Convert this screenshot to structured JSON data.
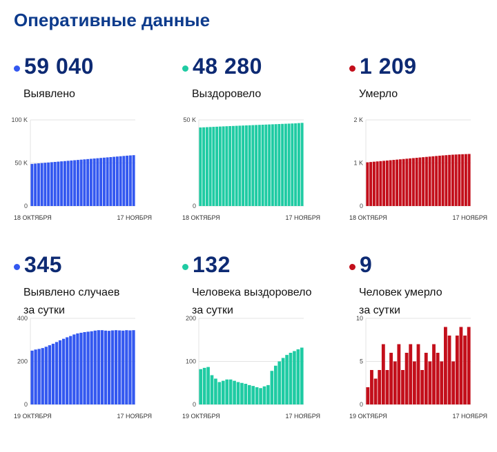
{
  "title": "Оперативные данные",
  "colors": {
    "blue": "#3358f0",
    "green": "#1fcba3",
    "red": "#c30f1b"
  },
  "panels": [
    {
      "value": "59 040",
      "label": "Выявлено",
      "color": "blue"
    },
    {
      "value": "48 280",
      "label": "Выздоровело",
      "color": "green"
    },
    {
      "value": "1 209",
      "label": "Умерло",
      "color": "red"
    },
    {
      "value": "345",
      "label": "Выявлено случаев\nза сутки",
      "color": "blue"
    },
    {
      "value": "132",
      "label": "Человека выздоровело\nза сутки",
      "color": "green"
    },
    {
      "value": "9",
      "label": "Человек умерло\nза сутки",
      "color": "red"
    }
  ],
  "chart_data": [
    {
      "type": "bar",
      "color": "blue",
      "ylim": [
        0,
        100000
      ],
      "yticks": [
        0,
        50000,
        100000
      ],
      "ytick_labels": [
        "0",
        "50 K",
        "100 K"
      ],
      "xtick_labels": [
        "18 ОКТЯБРЯ",
        "17 НОЯБРЯ"
      ],
      "values": [
        48900,
        49230,
        49560,
        49890,
        50220,
        50550,
        50880,
        51210,
        51540,
        51870,
        52200,
        52530,
        52860,
        53190,
        53520,
        53850,
        54180,
        54510,
        54840,
        55170,
        55500,
        55830,
        56160,
        56490,
        56820,
        57150,
        57480,
        57810,
        58140,
        58470,
        58780,
        59040
      ]
    },
    {
      "type": "bar",
      "color": "green",
      "ylim": [
        0,
        50000
      ],
      "yticks": [
        0,
        50000
      ],
      "ytick_labels": [
        "0",
        "50 K"
      ],
      "xtick_labels": [
        "18 ОКТЯБРЯ",
        "17 НОЯБРЯ"
      ],
      "values": [
        45600,
        45690,
        45780,
        45870,
        45960,
        46050,
        46140,
        46230,
        46320,
        46400,
        46480,
        46560,
        46640,
        46720,
        46800,
        46880,
        46960,
        47040,
        47120,
        47200,
        47280,
        47360,
        47440,
        47520,
        47600,
        47680,
        47760,
        47840,
        47920,
        48000,
        48140,
        48280
      ]
    },
    {
      "type": "bar",
      "color": "red",
      "ylim": [
        0,
        2000
      ],
      "yticks": [
        0,
        1000,
        2000
      ],
      "ytick_labels": [
        "0",
        "1 K",
        "2 K"
      ],
      "xtick_labels": [
        "18 ОКТЯБРЯ",
        "17 НОЯБРЯ"
      ],
      "values": [
        1015,
        1022,
        1029,
        1036,
        1043,
        1050,
        1057,
        1064,
        1071,
        1078,
        1085,
        1092,
        1099,
        1106,
        1113,
        1120,
        1127,
        1134,
        1141,
        1148,
        1155,
        1162,
        1169,
        1175,
        1181,
        1187,
        1192,
        1196,
        1200,
        1203,
        1206,
        1209
      ]
    },
    {
      "type": "bar",
      "color": "blue",
      "ylim": [
        0,
        400
      ],
      "yticks": [
        0,
        200,
        400
      ],
      "ytick_labels": [
        "0",
        "200",
        "400"
      ],
      "xtick_labels": [
        "19 ОКТЯБРЯ",
        "17 НОЯБРЯ"
      ],
      "values": [
        250,
        255,
        258,
        262,
        268,
        275,
        282,
        290,
        298,
        305,
        312,
        318,
        325,
        330,
        333,
        336,
        338,
        340,
        343,
        345,
        345,
        343,
        342,
        344,
        345,
        344,
        343,
        345,
        344,
        345
      ]
    },
    {
      "type": "bar",
      "color": "green",
      "ylim": [
        0,
        200
      ],
      "yticks": [
        0,
        100,
        200
      ],
      "ytick_labels": [
        "0",
        "100",
        "200"
      ],
      "xtick_labels": [
        "19 ОКТЯБРЯ",
        "17 НОЯБРЯ"
      ],
      "values": [
        82,
        85,
        87,
        68,
        60,
        52,
        55,
        58,
        58,
        55,
        52,
        50,
        48,
        45,
        43,
        40,
        38,
        42,
        45,
        78,
        90,
        100,
        108,
        115,
        120,
        124,
        128,
        132
      ]
    },
    {
      "type": "bar",
      "color": "red",
      "ylim": [
        0,
        10
      ],
      "yticks": [
        0,
        5,
        10
      ],
      "ytick_labels": [
        "0",
        "5",
        "10"
      ],
      "xtick_labels": [
        "19 ОКТЯБРЯ",
        "17 НОЯБРЯ"
      ],
      "values": [
        2,
        4,
        3,
        4,
        7,
        4,
        6,
        5,
        7,
        4,
        6,
        7,
        5,
        7,
        4,
        6,
        5,
        7,
        6,
        5,
        9,
        8,
        5,
        8,
        9,
        8,
        9
      ]
    }
  ]
}
